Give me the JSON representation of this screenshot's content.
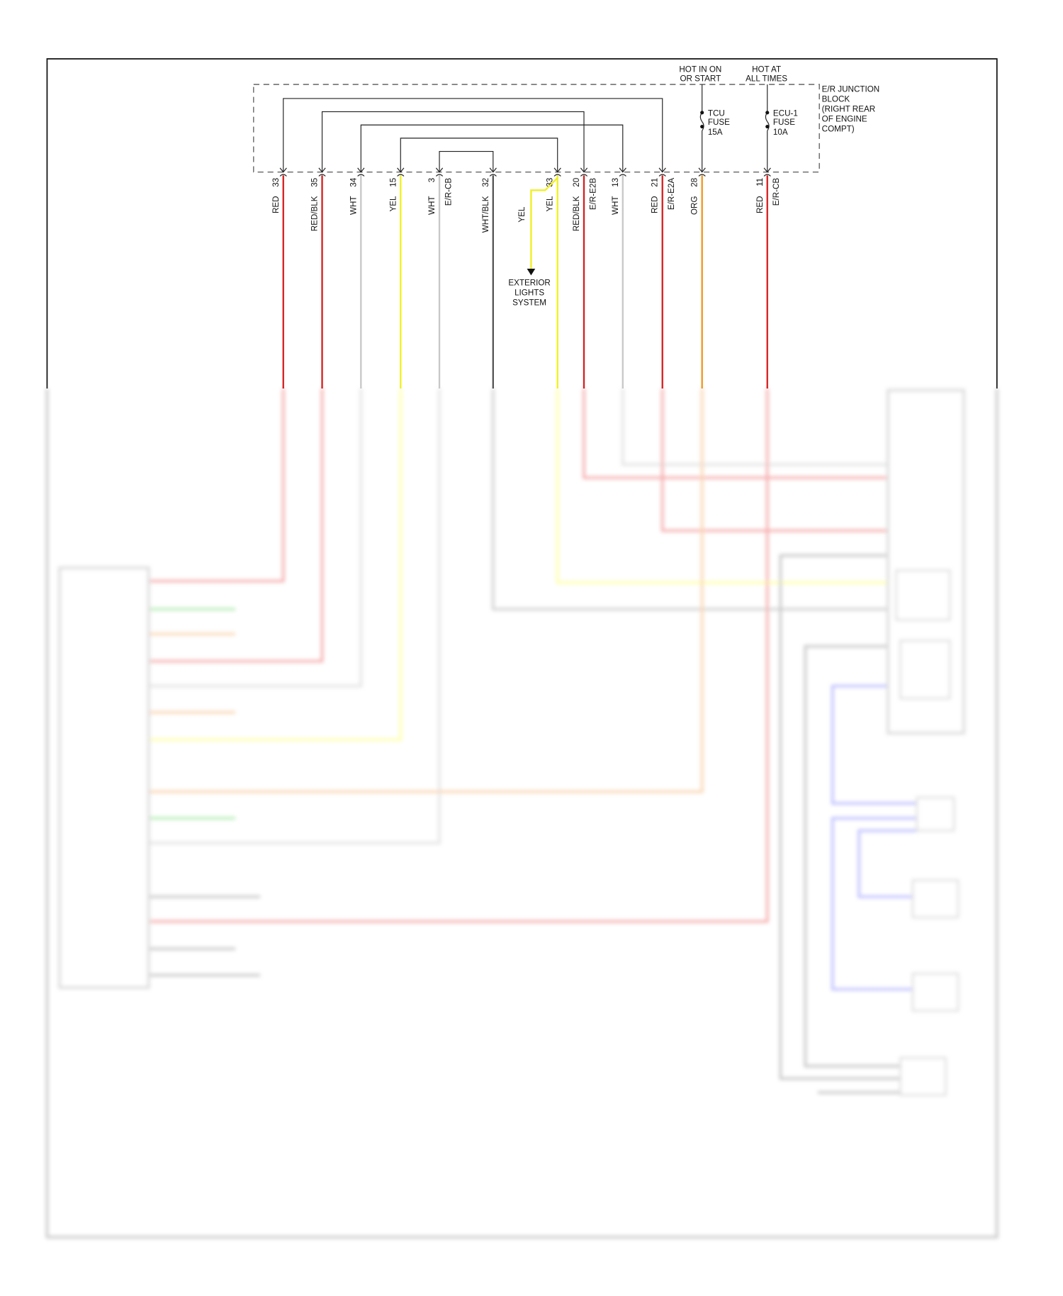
{
  "power_labels": {
    "tcu_source": [
      "HOT IN ON",
      "OR START"
    ],
    "ecu_source": [
      "HOT AT",
      "ALL TIMES"
    ]
  },
  "fuses": [
    {
      "lines": [
        "TCU",
        "FUSE",
        "15A"
      ]
    },
    {
      "lines": [
        "ECU-1",
        "FUSE",
        "10A"
      ]
    }
  ],
  "junction_block": [
    "E/R JUNCTION",
    "BLOCK",
    "(RIGHT REAR",
    "OF ENGINE",
    "COMPT)"
  ],
  "pins": [
    {
      "pin": "33",
      "color_label": "RED",
      "connector": "",
      "hex": "#d42020"
    },
    {
      "pin": "35",
      "color_label": "RED/BLK",
      "connector": "",
      "hex": "#d42020"
    },
    {
      "pin": "34",
      "color_label": "WHT",
      "connector": "",
      "hex": "#c8c8c8"
    },
    {
      "pin": "15",
      "color_label": "YEL",
      "connector": "",
      "hex": "#f0f020"
    },
    {
      "pin": "3",
      "color_label": "WHT",
      "connector": "E/R-CB",
      "hex": "#c8c8c8"
    },
    {
      "pin": "32",
      "color_label": "WHT/BLK",
      "connector": "",
      "hex": "#555555"
    },
    {
      "pin": "33",
      "color_label": "YEL",
      "connector": "",
      "hex": "#f0f020"
    },
    {
      "pin": "20",
      "color_label": "RED/BLK",
      "connector": "E/R-E2B",
      "hex": "#d42020"
    },
    {
      "pin": "13",
      "color_label": "WHT",
      "connector": "",
      "hex": "#c8c8c8"
    },
    {
      "pin": "21",
      "color_label": "RED",
      "connector": "E/R-E2A",
      "hex": "#d42020"
    },
    {
      "pin": "28",
      "color_label": "ORG",
      "connector": "",
      "hex": "#f0961e"
    },
    {
      "pin": "11",
      "color_label": "RED",
      "connector": "E/R-CB",
      "hex": "#d42020"
    }
  ],
  "branch": {
    "color_label": "YEL",
    "destination": [
      "EXTERIOR",
      "LIGHTS",
      "SYSTEM"
    ]
  }
}
